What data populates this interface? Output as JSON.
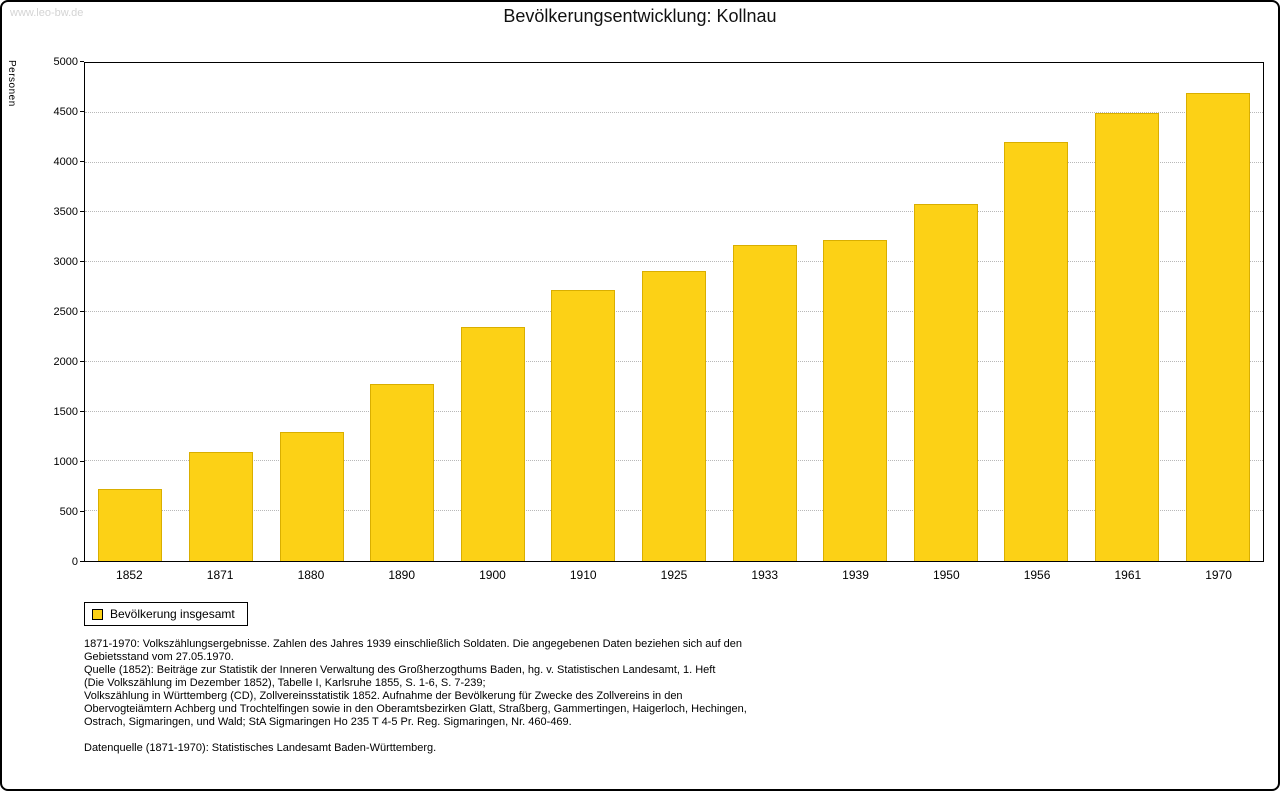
{
  "page": {
    "watermark": "www.leo-bw.de",
    "title": "Bevölkerungsentwicklung: Kollnau"
  },
  "chart_data": {
    "type": "bar",
    "title": "Bevölkerungsentwicklung: Kollnau",
    "xlabel": "",
    "ylabel": "Personen",
    "ylim": [
      0,
      5000
    ],
    "ytick_step": 500,
    "grid": true,
    "bar_color": "#FCD116",
    "bar_border_color": "#D9AE00",
    "legend": {
      "position": "bottom-left",
      "label": "Bevölkerung insgesamt"
    },
    "categories": [
      "1852",
      "1871",
      "1880",
      "1890",
      "1900",
      "1910",
      "1925",
      "1933",
      "1939",
      "1950",
      "1956",
      "1961",
      "1970"
    ],
    "values": [
      720,
      1090,
      1300,
      1780,
      2350,
      2720,
      2910,
      3170,
      3220,
      3580,
      4210,
      4500,
      4700
    ]
  },
  "footnotes": {
    "block1": "1871-1970: Volkszählungsergebnisse. Zahlen des Jahres 1939 einschließlich Soldaten. Die angegebenen Daten beziehen sich auf den\nGebietsstand vom 27.05.1970.\nQuelle (1852): Beiträge zur Statistik der Inneren Verwaltung des Großherzogthums Baden, hg. v. Statistischen Landesamt, 1. Heft\n(Die Volkszählung im Dezember 1852), Tabelle I, Karlsruhe 1855, S. 1-6, S. 7-239;\nVolkszählung in Württemberg (CD), Zollvereinsstatistik 1852. Aufnahme der Bevölkerung für Zwecke des Zollvereins in den\nObervogteiämtern Achberg und Trochtelfingen sowie in den Oberamtsbezirken Glatt, Straßberg, Gammertingen, Haigerloch, Hechingen,\nOstrach, Sigmaringen, und Wald; StA Sigmaringen Ho 235 T 4-5 Pr. Reg. Sigmaringen, Nr. 460-469.",
    "block2": "Datenquelle (1871-1970): Statistisches Landesamt Baden-Württemberg."
  }
}
